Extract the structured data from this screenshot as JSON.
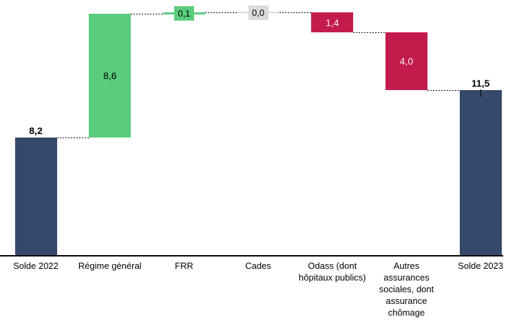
{
  "chart_data": {
    "type": "bar",
    "subtype": "waterfall",
    "title": "",
    "legend": "none",
    "grid": false,
    "y_axis_visible": false,
    "axis": {
      "baseline_value": 0,
      "max_cumulative": 16.9
    },
    "categories": [
      "Solde 2022",
      "Régime général",
      "FRR",
      "Cades",
      "Odass (dont\nhôpitaux publics)",
      "Autres\nassurances\nsociales, dont\nassurance\nchômage",
      "Solde 2023"
    ],
    "bars": [
      {
        "slug": "solde-2022",
        "category": "Solde 2022",
        "label": "8,2",
        "value": 8.2,
        "start": 0,
        "end": 8.2,
        "role": "total",
        "label_position": "above"
      },
      {
        "slug": "regime-general",
        "category": "Régime général",
        "label": "8,6",
        "value": 8.6,
        "start": 8.2,
        "end": 16.8,
        "role": "increase",
        "label_position": "inside"
      },
      {
        "slug": "frr",
        "category": "FRR",
        "label": "0,1",
        "value": 0.1,
        "start": 16.8,
        "end": 16.9,
        "role": "increase",
        "label_position": "boxed"
      },
      {
        "slug": "cades",
        "category": "Cades",
        "label": "0,0",
        "value": 0.0,
        "start": 16.9,
        "end": 16.9,
        "role": "neutral",
        "label_position": "boxed"
      },
      {
        "slug": "odass",
        "category": "Odass (dont\nhôpitaux publics)",
        "label": "1,4",
        "value": -1.4,
        "start": 16.9,
        "end": 15.5,
        "role": "decrease",
        "label_position": "inside"
      },
      {
        "slug": "autres-assurances-sociales",
        "category": "Autres\nassurances\nsociales, dont\nassurance\nchômage",
        "label": "4,0",
        "value": -4.0,
        "start": 15.5,
        "end": 11.5,
        "role": "decrease",
        "label_position": "inside"
      },
      {
        "slug": "solde-2023",
        "category": "Solde 2023",
        "label": "11,5",
        "value": 11.5,
        "start": 0,
        "end": 11.5,
        "role": "total",
        "label_position": "above",
        "leader_line": true
      }
    ],
    "colors": {
      "total": "#36496B",
      "increase": "#5ACD7D",
      "decrease": "#C41B4D",
      "neutral": "#D9D9D9",
      "connector": "#000000",
      "axis": "#000000",
      "label_total_text": "#000000",
      "label_inside_increase_text": "#000000",
      "label_inside_decrease_text": "#F2F2F2",
      "label_boxed_text": "#000000",
      "category_text": "#000000"
    }
  }
}
